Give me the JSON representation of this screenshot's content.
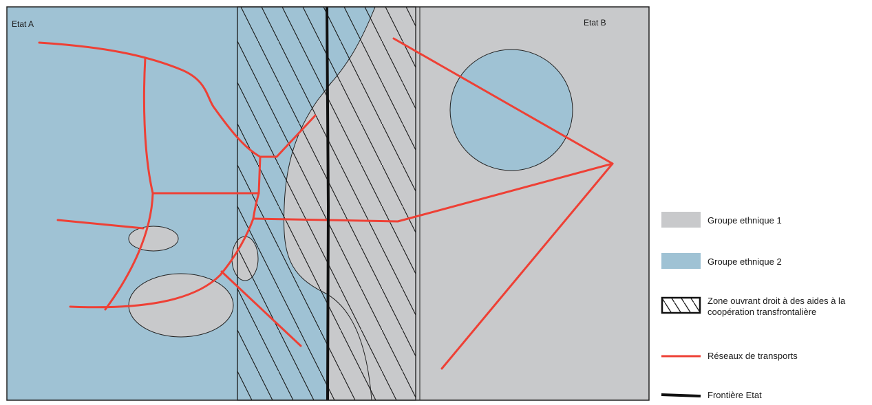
{
  "states": {
    "a": "Etat A",
    "b": "Etat B"
  },
  "legend": [
    {
      "key": "groupe1",
      "label": "Groupe ethnique 1",
      "color": "#c8c9cb"
    },
    {
      "key": "groupe2",
      "label": "Groupe ethnique 2",
      "color": "#9fc2d4"
    },
    {
      "key": "zone",
      "label_line1": "Zone ouvrant droit à des aides à la",
      "label_line2": "coopération transfrontalière"
    },
    {
      "key": "transport",
      "label": "Réseaux de transports",
      "color": "#ee4035"
    },
    {
      "key": "border",
      "label": "Frontière Etat",
      "color": "#111111"
    }
  ]
}
